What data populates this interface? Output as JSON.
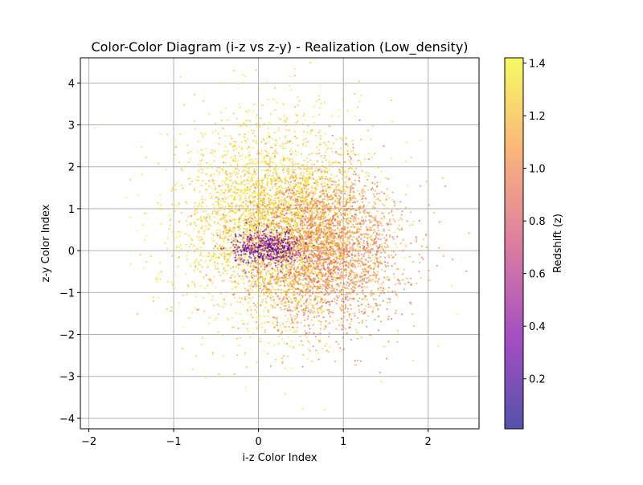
{
  "chart_data": {
    "type": "scatter",
    "title": "Color-Color Diagram (i-z vs z-y) - Realization (Low_density)",
    "xlabel": "i-z Color Index",
    "ylabel": "z-y Color Index",
    "xlim": [
      -2.1,
      2.6
    ],
    "ylim": [
      -4.25,
      4.6
    ],
    "xticks": [
      -2,
      -1,
      0,
      1,
      2
    ],
    "yticks": [
      -4,
      -3,
      -2,
      -1,
      0,
      1,
      2,
      3,
      4
    ],
    "xtick_labels": [
      "−2",
      "−1",
      "0",
      "1",
      "2"
    ],
    "ytick_labels": [
      "−4",
      "−3",
      "−2",
      "−1",
      "0",
      "1",
      "2",
      "3",
      "4"
    ],
    "grid": true,
    "point_alpha": 0.7,
    "colormap": "plasma",
    "colorbar": {
      "label": "Redshift (z)",
      "range": [
        0.01,
        1.42
      ],
      "ticks": [
        0.2,
        0.4,
        0.6,
        0.8,
        1.0,
        1.2,
        1.4
      ],
      "tick_labels": [
        "0.2",
        "0.4",
        "0.6",
        "0.8",
        "1.0",
        "1.2",
        "1.4"
      ]
    },
    "population_summary": {
      "high_z_cluster": {
        "z_range": [
          1.15,
          1.42
        ],
        "center": [
          0.2,
          0.7
        ],
        "spread": [
          0.55,
          1.2
        ]
      },
      "mid_z_cluster": {
        "z_range": [
          0.8,
          1.2
        ],
        "center": [
          0.75,
          0.0
        ],
        "spread": [
          0.45,
          0.9
        ]
      },
      "low_z_cluster": {
        "z_range": [
          0.01,
          0.8
        ],
        "center": [
          0.1,
          0.1
        ],
        "spread": [
          0.2,
          0.2
        ]
      }
    },
    "series": [
      {
        "values": [
          {
            "x": -1.93,
            "y": 2.92,
            "z": 1.38
          },
          {
            "x": -1.35,
            "y": -0.42,
            "z": 1.36
          },
          {
            "x": -1.42,
            "y": 1.32,
            "z": 1.4
          },
          {
            "x": 2.35,
            "y": -1.52,
            "z": 1.38
          },
          {
            "x": 2.28,
            "y": -0.85,
            "z": 1.37
          },
          {
            "x": 2.12,
            "y": -2.28,
            "z": 1.35
          },
          {
            "x": 0.37,
            "y": 4.15,
            "z": 1.39
          },
          {
            "x": 0.1,
            "y": 4.02,
            "z": 1.38
          },
          {
            "x": 0.52,
            "y": -3.78,
            "z": 1.36
          },
          {
            "x": 0.78,
            "y": -3.8,
            "z": 1.3
          },
          {
            "x": -0.15,
            "y": -3.28,
            "z": 1.38
          },
          {
            "x": 1.75,
            "y": 2.58,
            "z": 1.36
          },
          {
            "x": 1.02,
            "y": 3.95,
            "z": 1.39
          },
          {
            "x": -1.18,
            "y": -1.12,
            "z": 1.37
          },
          {
            "x": -1.15,
            "y": 2.78,
            "z": 1.4
          },
          {
            "x": 1.82,
            "y": -2.62,
            "z": 1.34
          },
          {
            "x": -0.62,
            "y": -3.05,
            "z": 1.38
          },
          {
            "x": 1.45,
            "y": -3.12,
            "z": 1.35
          }
        ]
      }
    ]
  }
}
